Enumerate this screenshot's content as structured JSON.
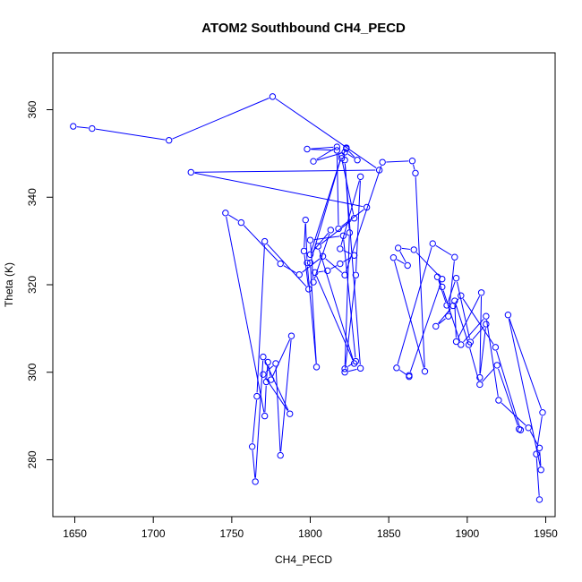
{
  "chart_data": {
    "type": "line",
    "title": "ATOM2 Southbound CH4_PECD",
    "xlabel": "CH4_PECD",
    "ylabel": "Theta (K)",
    "xlim": [
      1636,
      1956
    ],
    "ylim": [
      267,
      373
    ],
    "xticks": [
      1650,
      1700,
      1750,
      1800,
      1850,
      1900,
      1950
    ],
    "yticks": [
      280,
      300,
      320,
      340,
      360
    ],
    "grid": false,
    "series_color": "#0000ff",
    "series": [
      {
        "marker": "open-circle",
        "x": [
          1649,
          1661,
          1710,
          1776,
          1844,
          1724,
          1836,
          1818,
          1817,
          1798,
          1817,
          1802,
          1822,
          1830,
          1823,
          1823,
          1820,
          1828,
          1805,
          1828,
          1803,
          1811,
          1819,
          1828,
          1819,
          1832,
          1829,
          1822,
          1832,
          1822,
          1825,
          1822,
          1829,
          1821,
          1800,
          1802,
          1813,
          1800,
          1820,
          1800,
          1804,
          1798,
          1797,
          1796,
          1799,
          1771,
          1766,
          1763,
          1765,
          1770,
          1787,
          1770,
          1778,
          1781,
          1788,
          1775,
          1773,
          1772,
          1771,
          1746,
          1756,
          1781,
          1793,
          1808,
          1822,
          1846,
          1865,
          1867,
          1873,
          1853,
          1862,
          1856,
          1866,
          1884,
          1863,
          1863,
          1855,
          1878,
          1892,
          1888,
          1880,
          1891,
          1896,
          1918,
          1934,
          1933,
          1919,
          1908,
          1901,
          1892,
          1893,
          1909,
          1908,
          1912,
          1902,
          1893,
          1887,
          1881,
          1884,
          1896,
          1912,
          1920,
          1939,
          1946,
          1947,
          1926,
          1948,
          1944,
          1946
        ]
      }
    ]
  }
}
